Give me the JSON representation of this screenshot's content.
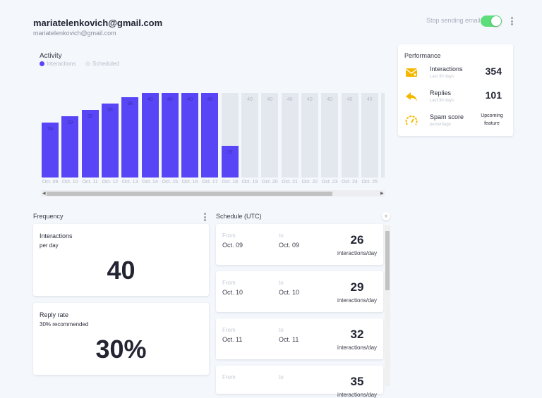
{
  "header": {
    "title": "mariatelenkovich@gmail.com",
    "subtitle": "mariatelenkovich@gmail.com",
    "stop_label": "Stop sending emails",
    "stop_enabled": true
  },
  "activity": {
    "title": "Activity",
    "legend": [
      "Interactions",
      "Scheduled"
    ]
  },
  "chart_data": {
    "type": "bar",
    "categories": [
      "Oct. 09",
      "Oct. 10",
      "Oct. 11",
      "Oct. 12",
      "Oct. 13",
      "Oct. 14",
      "Oct. 15",
      "Oct. 16",
      "Oct. 17",
      "Oct. 18",
      "Oct. 19",
      "Oct. 20",
      "Oct. 21",
      "Oct. 22",
      "Oct. 23",
      "Oct. 24",
      "Oct. 25",
      "O"
    ],
    "series": [
      {
        "name": "Interactions",
        "color": "#5846f6",
        "values": [
          26,
          29,
          32,
          35,
          38,
          40,
          40,
          40,
          40,
          15,
          null,
          null,
          null,
          null,
          null,
          null,
          null,
          null
        ]
      },
      {
        "name": "Scheduled",
        "color": "#e3e8ef",
        "values": [
          null,
          null,
          null,
          null,
          null,
          null,
          null,
          null,
          null,
          40,
          40,
          40,
          40,
          40,
          40,
          40,
          40,
          40
        ]
      }
    ],
    "ylim": [
      0,
      40
    ],
    "grid": false,
    "legend": "top-left"
  },
  "performance": {
    "title": "Performance",
    "items": [
      {
        "label": "Interactions",
        "sub": "Last 30 days",
        "value": "354",
        "icon": "envelope-icon"
      },
      {
        "label": "Replies",
        "sub": "Last 30 days",
        "value": "101",
        "icon": "reply-icon"
      },
      {
        "label": "Spam score",
        "sub": "percentage",
        "value_line1": "Upcoming",
        "value_line2": "feature",
        "icon": "speedometer-icon"
      }
    ],
    "accent": "#f5b800"
  },
  "frequency": {
    "title": "Frequency",
    "cards": [
      {
        "label": "Interactions",
        "sub": "per day",
        "value": "40"
      },
      {
        "label": "Reply rate",
        "sub": "30% recommended",
        "value": "30%"
      }
    ]
  },
  "schedule": {
    "title": "Schedule (UTC)",
    "plus": "+",
    "from_label": "From",
    "to_label": "to",
    "unit": "interactions/day",
    "items": [
      {
        "from": "Oct. 09",
        "to": "Oct. 09",
        "value": "26"
      },
      {
        "from": "Oct. 10",
        "to": "Oct. 10",
        "value": "29"
      },
      {
        "from": "Oct. 11",
        "to": "Oct. 11",
        "value": "32"
      },
      {
        "from": "",
        "to": "",
        "value": "35"
      }
    ]
  }
}
